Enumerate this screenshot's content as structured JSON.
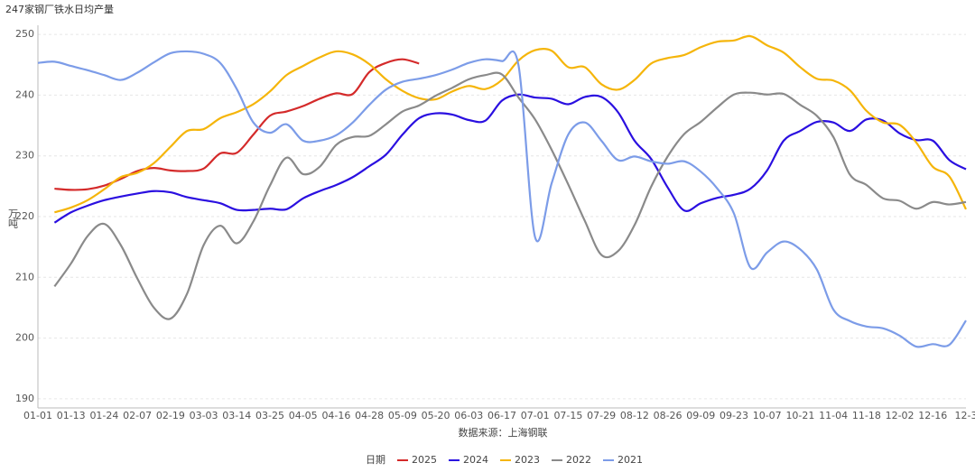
{
  "chart_data": {
    "type": "line",
    "title": "247家钢厂铁水日均产量",
    "y_label": "万吨",
    "x_label": "数据来源：上海钢联",
    "legend_title": "日期",
    "categories": [
      "01-01",
      null,
      "01-13",
      null,
      "01-24",
      null,
      "02-07",
      null,
      "02-19",
      null,
      "03-03",
      null,
      "03-14",
      null,
      "03-25",
      null,
      "04-05",
      null,
      "04-16",
      null,
      "04-28",
      null,
      "05-09",
      null,
      "05-20",
      null,
      "06-03",
      null,
      "06-17",
      null,
      "07-01",
      null,
      "07-15",
      null,
      "07-29",
      null,
      "08-12",
      null,
      "08-26",
      null,
      "09-09",
      null,
      "09-23",
      null,
      "10-07",
      null,
      "10-21",
      null,
      "11-04",
      null,
      "11-18",
      null,
      "12-02",
      null,
      "12-16",
      null,
      "12-3"
    ],
    "ylim": [
      188.5,
      251.5
    ],
    "yticks": [
      190,
      200,
      210,
      220,
      230,
      240,
      250
    ],
    "grid": true,
    "legend": "bottom",
    "series": [
      {
        "name": "2025",
        "color": "#d42a2a",
        "values": [
          null,
          224.6,
          224.4,
          224.5,
          225.1,
          226.2,
          227.5,
          228.0,
          227.6,
          227.5,
          227.9,
          230.4,
          230.5,
          233.5,
          236.6,
          237.3,
          238.2,
          239.4,
          240.3,
          240.2,
          243.8,
          245.3,
          245.9,
          245.2,
          null,
          null,
          null,
          null,
          null,
          null,
          null,
          null,
          null,
          null,
          null,
          null,
          null,
          null,
          null,
          null,
          null,
          null,
          null,
          null,
          null,
          null,
          null,
          null,
          null,
          null,
          null,
          null,
          null,
          null,
          null,
          null,
          null
        ]
      },
      {
        "name": "2024",
        "color": "#2a0fe0",
        "values": [
          null,
          219.0,
          220.7,
          221.8,
          222.7,
          223.3,
          223.8,
          224.2,
          224.0,
          223.2,
          222.7,
          222.2,
          221.1,
          221.1,
          221.3,
          221.2,
          223.0,
          224.2,
          225.2,
          226.5,
          228.3,
          230.2,
          233.5,
          236.2,
          237.0,
          236.8,
          235.9,
          235.8,
          239.1,
          240.1,
          239.6,
          239.4,
          238.5,
          239.7,
          239.7,
          237.2,
          232.5,
          229.5,
          224.8,
          221.0,
          222.2,
          223.1,
          223.6,
          224.6,
          227.6,
          232.5,
          234.1,
          235.6,
          235.5,
          234.1,
          236.0,
          235.8,
          233.7,
          232.6,
          232.5,
          229.3,
          227.8
        ]
      },
      {
        "name": "2023",
        "color": "#f5b50a",
        "values": [
          null,
          220.7,
          221.5,
          222.7,
          224.5,
          226.5,
          227.2,
          228.8,
          231.5,
          234.1,
          234.4,
          236.2,
          237.2,
          238.5,
          240.6,
          243.3,
          244.8,
          246.2,
          247.2,
          246.7,
          245.1,
          242.6,
          240.7,
          239.5,
          239.3,
          240.6,
          241.5,
          241.0,
          242.5,
          245.7,
          247.4,
          247.3,
          244.6,
          244.6,
          241.8,
          240.9,
          242.5,
          245.2,
          246.1,
          246.6,
          247.9,
          248.8,
          249.0,
          249.7,
          248.2,
          247.0,
          244.6,
          242.7,
          242.4,
          240.8,
          237.4,
          235.5,
          235.1,
          232.2,
          228.2,
          226.6,
          221.2
        ]
      },
      {
        "name": "2022",
        "color": "#8a8a8a",
        "values": [
          null,
          208.5,
          212.3,
          216.8,
          218.8,
          215.3,
          209.8,
          205.0,
          203.2,
          207.3,
          215.3,
          218.5,
          215.6,
          219.2,
          225.1,
          229.7,
          227.0,
          228.2,
          231.8,
          233.1,
          233.3,
          235.2,
          237.3,
          238.3,
          239.9,
          241.2,
          242.6,
          243.3,
          243.4,
          239.6,
          236.0,
          231.0,
          225.3,
          219.3,
          213.7,
          214.3,
          218.6,
          224.9,
          229.9,
          233.6,
          235.6,
          238.0,
          240.1,
          240.4,
          240.1,
          240.2,
          238.4,
          236.6,
          233.1,
          226.9,
          225.2,
          223.0,
          222.6,
          221.3,
          222.4,
          222.0,
          222.4
        ]
      },
      {
        "name": "2021",
        "color": "#7c9ce8",
        "values": [
          245.3,
          245.5,
          244.8,
          244.1,
          243.3,
          242.5,
          243.7,
          245.4,
          246.9,
          247.2,
          246.8,
          245.3,
          241.0,
          235.5,
          233.8,
          235.2,
          232.5,
          232.5,
          233.4,
          235.5,
          238.4,
          240.9,
          242.2,
          242.7,
          243.3,
          244.2,
          245.3,
          245.9,
          245.6,
          244.9,
          216.6,
          225.5,
          233.5,
          235.5,
          232.5,
          229.3,
          229.9,
          229.1,
          228.7,
          229.1,
          227.4,
          224.6,
          220.5,
          211.6,
          214.1,
          215.9,
          214.6,
          211.3,
          204.7,
          202.8,
          201.9,
          201.6,
          200.4,
          198.6,
          199.0,
          198.9,
          202.9
        ]
      }
    ]
  }
}
